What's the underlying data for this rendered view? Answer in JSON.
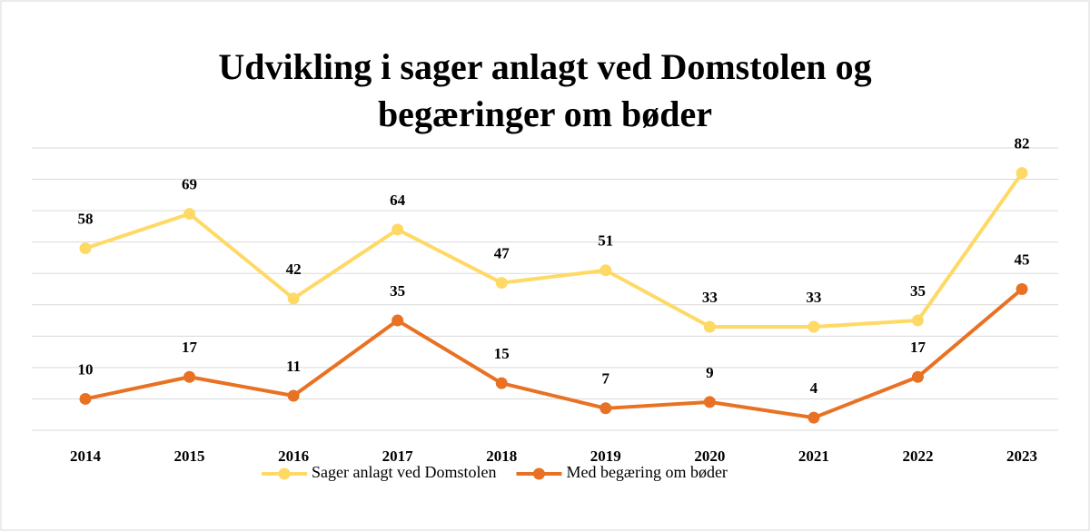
{
  "chart_data": {
    "type": "line",
    "title": [
      "Udvikling i sager anlagt ved Domstolen og",
      "begæringer om bøder"
    ],
    "categories": [
      "2014",
      "2015",
      "2016",
      "2017",
      "2018",
      "2019",
      "2020",
      "2021",
      "2022",
      "2023"
    ],
    "series": [
      {
        "name": "Sager anlagt ved Domstolen",
        "color": "#FFD966",
        "values": [
          58,
          69,
          42,
          64,
          47,
          51,
          33,
          33,
          35,
          82
        ]
      },
      {
        "name": "Med begæring om bøder",
        "color": "#E97123",
        "values": [
          10,
          17,
          11,
          35,
          15,
          7,
          9,
          4,
          17,
          45
        ]
      }
    ],
    "ylim": [
      0,
      90
    ],
    "yticks": [
      0,
      10,
      20,
      30,
      40,
      50,
      60,
      70,
      80,
      90
    ],
    "grid": true,
    "legend": "bottom"
  }
}
